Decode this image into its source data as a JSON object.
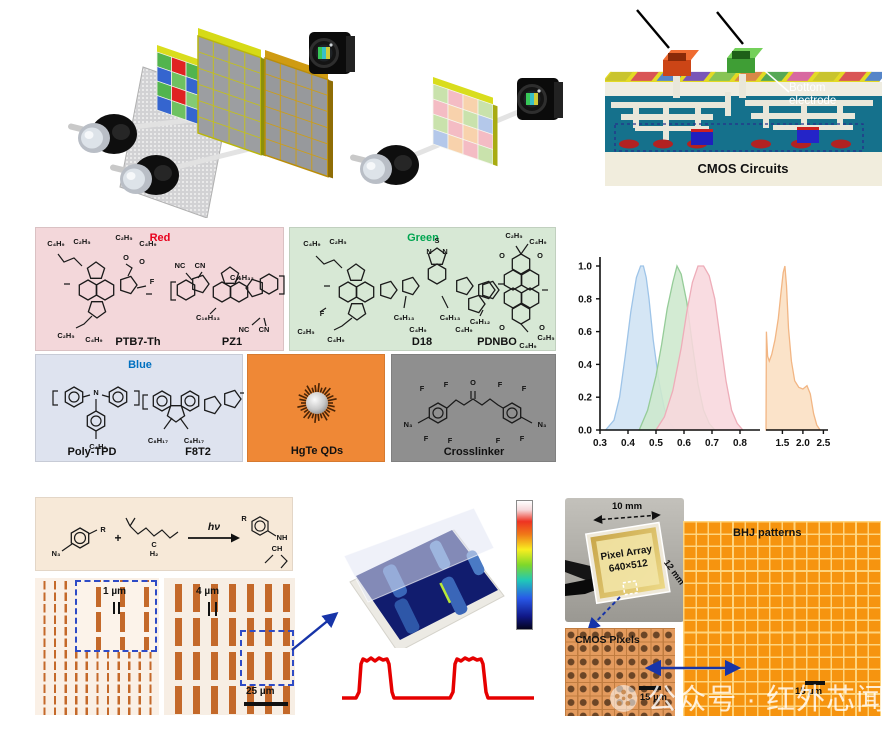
{
  "panel_fabrication": {
    "bottom_electrode_label": "Bottom electrode",
    "cmos_circuits_label": "CMOS Circuits"
  },
  "materials": {
    "red": {
      "title": "Red",
      "accent": "#e8001c",
      "bg": "#f3d7da",
      "name1": "PTB7-Th",
      "name2": "PZ1",
      "ann": [
        "C₄H₉",
        "C₂H₅",
        "C₂H₅",
        "C₄H₉",
        "O",
        "O",
        "F",
        "C₂H₅",
        "C₄H₉",
        "NC",
        "CN",
        "C₁₆H₃₃",
        "C₁₆H₃₃",
        "NC",
        "CN"
      ]
    },
    "green": {
      "title": "Green",
      "accent": "#00a550",
      "bg": "#d7e8d5",
      "name1": "D18",
      "name2": "PDNBO",
      "ann": [
        "C₄H₉",
        "C₂H₅",
        "N",
        "S",
        "N",
        "F",
        "C₂H₅",
        "C₄H₉",
        "C₆H₁₃",
        "C₄H₉",
        "C₆H₁₃",
        "C₄H₉",
        "O",
        "O",
        "C₂H₅",
        "C₄H₉",
        "C₆H₁₂",
        "O",
        "O",
        "C₂H₅",
        "C₄H₉"
      ]
    },
    "blue": {
      "title": "Blue",
      "accent": "#0070c0",
      "bg": "#dee3ef",
      "name1": "Poly-TPD",
      "name2": "F8T2",
      "ann": [
        "N",
        "C₄H₉",
        "C₈H₁₇",
        "C₈H₁₇"
      ]
    },
    "hgte": {
      "label": "HgTe QDs",
      "bg": "#ef8836"
    },
    "crosslinker": {
      "label": "Crosslinker",
      "bg": "#8f8f8f",
      "ann": [
        "N₃",
        "F",
        "F",
        "F",
        "F",
        "O",
        "F",
        "F",
        "F",
        "F",
        "N₃"
      ]
    }
  },
  "reaction": {
    "azide": "N₃",
    "r_left": "R",
    "plus": "+",
    "carbon": "C",
    "h2": "H₂",
    "hv": "hν",
    "r_right": "R",
    "nh": "NH",
    "ch": "CH"
  },
  "microscopy": {
    "scale_inset_left": "1 µm",
    "scale_inset_right": "4 µm",
    "scale_bar_right": "25 µm"
  },
  "device": {
    "chip_width": "10 mm",
    "chip_height": "12 mm",
    "chip_line1": "Pixel Array",
    "chip_line2": "640×512",
    "cmos_pixels_label": "CMOS Pixels",
    "cmos_scale": "15 µm",
    "bhj_label": "BHJ patterns",
    "bhj_scale": "15 µm"
  },
  "watermark": {
    "text": "公众号 · 红外芯闻"
  },
  "chart_data": {
    "type": "area",
    "title": "",
    "xlabel": "",
    "ylabel": "",
    "ylim": [
      0,
      1.05
    ],
    "grid": false,
    "legend": false,
    "axis_break": {
      "left_max": 0.85,
      "right_min": 1.1
    },
    "x_ticks": [
      0.3,
      0.4,
      0.5,
      0.6,
      0.7,
      0.8,
      1.5,
      2.0,
      2.5
    ],
    "x_tick_labels": [
      "0.3",
      "0.4",
      "0.5",
      "0.6",
      "0.7",
      "0.8",
      "1.5",
      "2.0",
      "2.5"
    ],
    "y_ticks": [
      0.0,
      0.2,
      0.4,
      0.6,
      0.8,
      1.0
    ],
    "y_tick_labels": [
      "0.0",
      "0.2",
      "0.4",
      "0.6",
      "0.8",
      "1.0"
    ],
    "series": [
      {
        "name": "blue-absorber",
        "fill": "#cfe3f4",
        "stroke": "#9ec4e8",
        "x": [
          0.32,
          0.35,
          0.37,
          0.39,
          0.41,
          0.43,
          0.445,
          0.455,
          0.465,
          0.475,
          0.49,
          0.51,
          0.53,
          0.55,
          0.57
        ],
        "y": [
          0,
          0.06,
          0.2,
          0.45,
          0.72,
          0.93,
          1.0,
          1.0,
          0.93,
          0.8,
          0.55,
          0.3,
          0.13,
          0.04,
          0
        ]
      },
      {
        "name": "green-absorber",
        "fill": "#cde8cd",
        "stroke": "#95cc98",
        "x": [
          0.44,
          0.47,
          0.5,
          0.52,
          0.54,
          0.56,
          0.575,
          0.59,
          0.61,
          0.63,
          0.65,
          0.67,
          0.69,
          0.71
        ],
        "y": [
          0,
          0.12,
          0.33,
          0.52,
          0.74,
          0.9,
          1.0,
          0.95,
          0.78,
          0.52,
          0.28,
          0.12,
          0.04,
          0
        ]
      },
      {
        "name": "red-absorber",
        "fill": "#f8d7dd",
        "stroke": "#eeadb9",
        "x": [
          0.5,
          0.53,
          0.56,
          0.59,
          0.61,
          0.63,
          0.65,
          0.67,
          0.69,
          0.71,
          0.73,
          0.75,
          0.77,
          0.79,
          0.81
        ],
        "y": [
          0,
          0.08,
          0.24,
          0.5,
          0.72,
          0.9,
          1.0,
          1.0,
          0.94,
          0.8,
          0.55,
          0.3,
          0.12,
          0.04,
          0
        ]
      },
      {
        "name": "hgte-qds-ir",
        "fill": "#fbdfc2",
        "stroke": "#f2b684",
        "x": [
          1.1,
          1.11,
          1.14,
          1.18,
          1.24,
          1.32,
          1.4,
          1.47,
          1.52,
          1.56,
          1.6,
          1.65,
          1.72,
          1.8,
          1.9,
          2.0,
          2.1,
          2.18,
          2.26,
          2.34,
          2.42
        ],
        "y": [
          0,
          0.6,
          0.45,
          0.42,
          0.46,
          0.55,
          0.68,
          0.85,
          0.96,
          1.0,
          0.88,
          0.62,
          0.42,
          0.3,
          0.26,
          0.25,
          0.27,
          0.22,
          0.1,
          0.03,
          0
        ]
      }
    ]
  }
}
